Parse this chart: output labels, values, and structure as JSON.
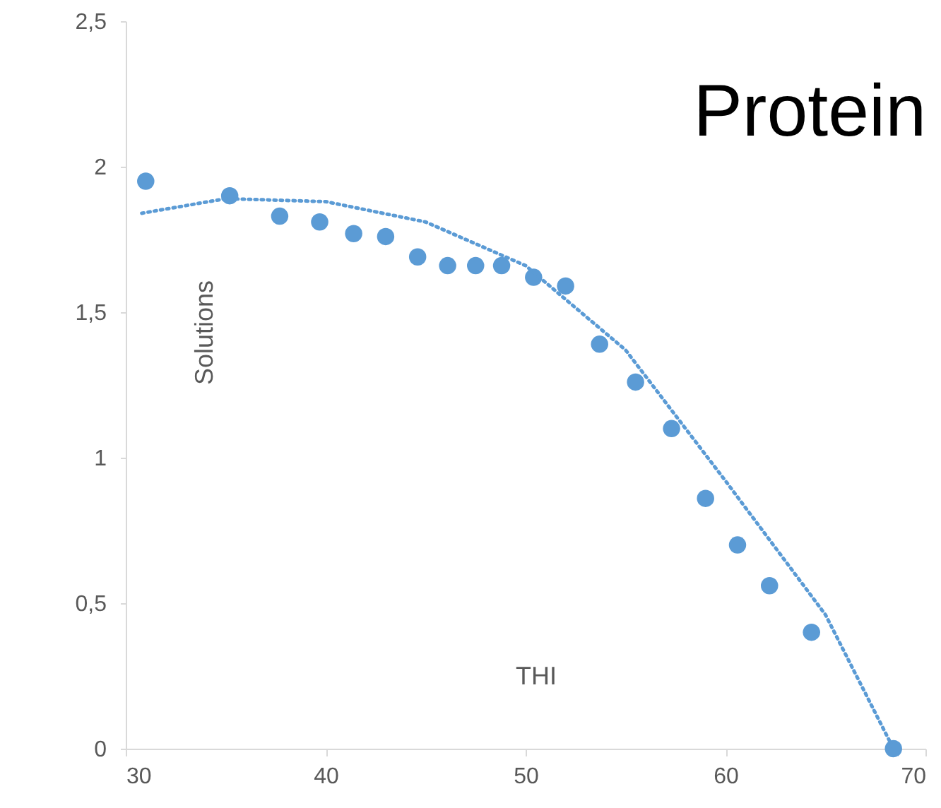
{
  "chart_data": {
    "type": "scatter",
    "title": "Protein",
    "xlabel": "THI",
    "ylabel": "Solutions",
    "grid": false,
    "xlim": [
      30,
      70
    ],
    "xticks": [
      30,
      40,
      50,
      60,
      70
    ],
    "ylim": [
      0,
      2.5
    ],
    "yticks": [
      0,
      {
        "value": 0.5,
        "label": "0,5"
      },
      1,
      {
        "value": 1.5,
        "label": "1,5"
      },
      2,
      {
        "value": 2.5,
        "label": "2,5"
      }
    ],
    "series": [
      {
        "marker": "circle",
        "color": "#5b9bd5",
        "x": [
          31.0,
          35.2,
          37.7,
          39.7,
          41.4,
          43.0,
          44.6,
          46.1,
          47.5,
          48.8,
          50.4,
          52.0,
          53.7,
          55.5,
          57.3,
          59.0,
          60.6,
          62.2,
          64.3,
          68.4
        ],
        "values": [
          1.95,
          1.9,
          1.83,
          1.81,
          1.77,
          1.76,
          1.69,
          1.66,
          1.66,
          1.66,
          1.62,
          1.59,
          1.39,
          1.26,
          1.1,
          0.86,
          0.7,
          0.56,
          0.4,
          0
        ]
      },
      {
        "type": "line",
        "marker": "none",
        "line_style": "dotted",
        "color": "#5b9bd5",
        "x": [
          30.8,
          35,
          40,
          45,
          50,
          55,
          60,
          65,
          68.4
        ],
        "values": [
          1.84,
          1.89,
          1.88,
          1.81,
          1.66,
          1.37,
          0.92,
          0.46,
          0
        ]
      }
    ]
  }
}
